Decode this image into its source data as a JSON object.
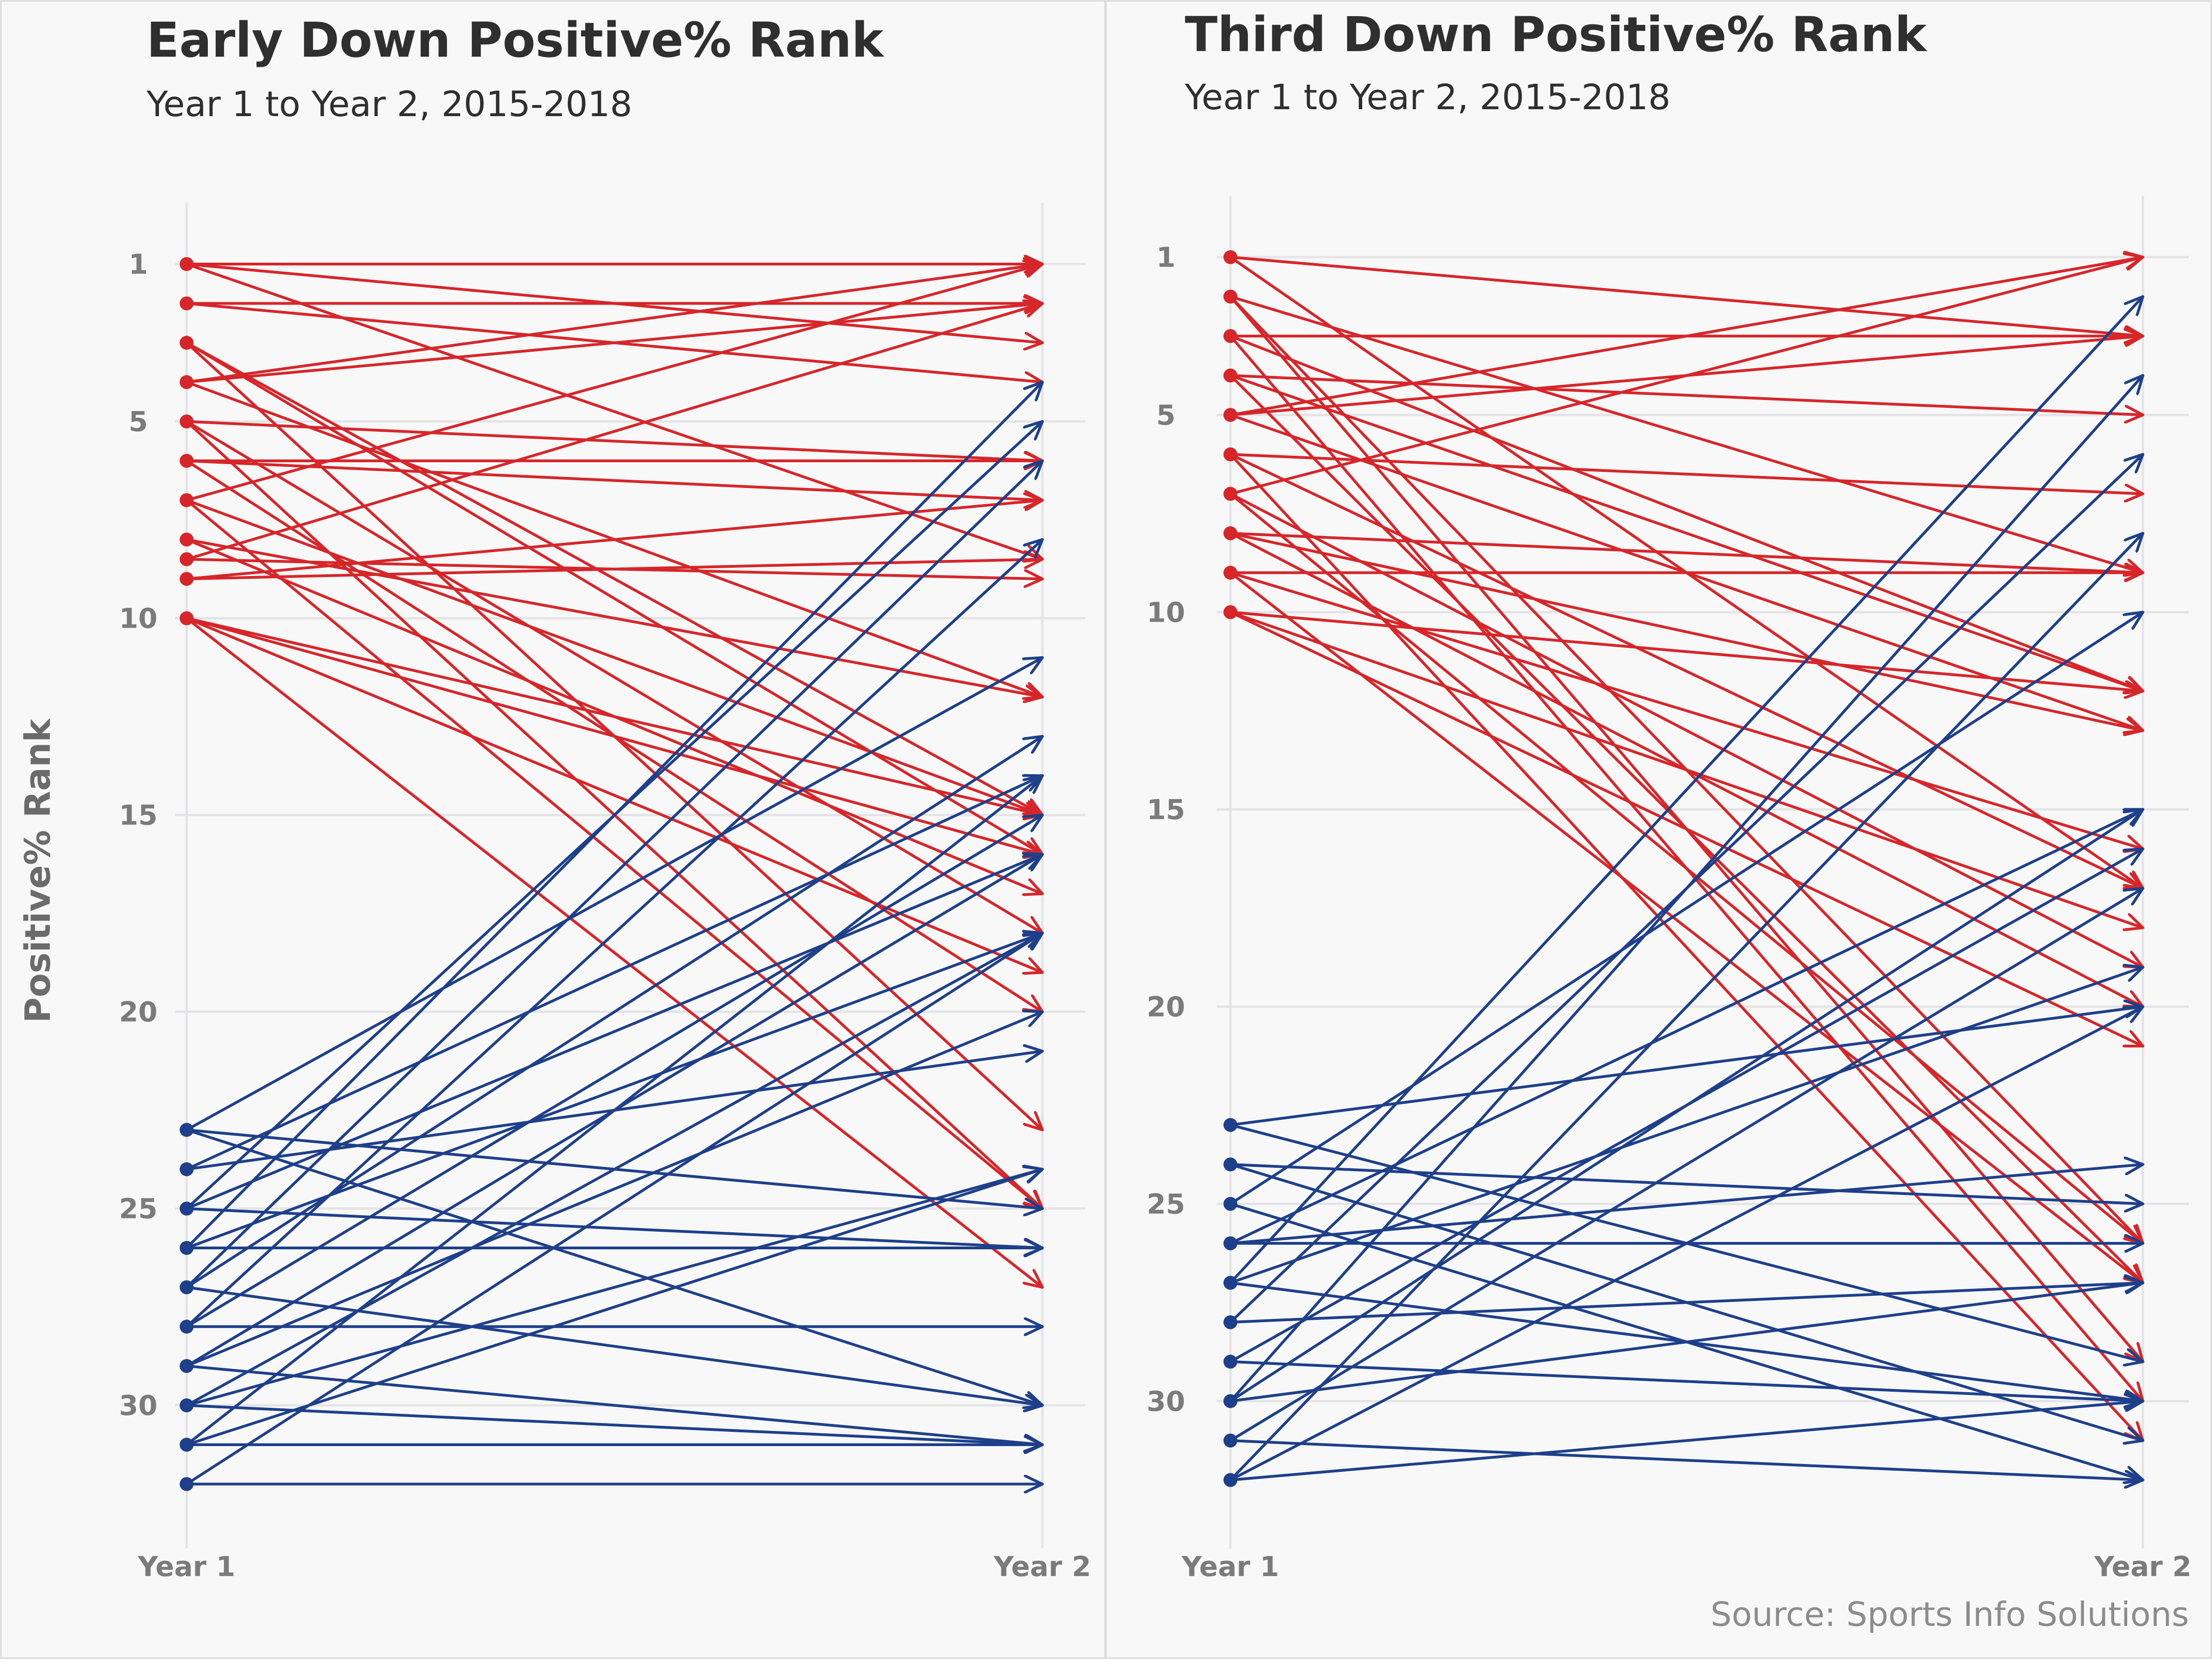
{
  "y_axis_label": "Positive% Rank",
  "source": "Source: Sports Info Solutions",
  "colors": {
    "improved": "#d7262a",
    "declined": "#1e3f8a",
    "grid": "#e4e4e7",
    "text": "#2f2f2f",
    "axis_text": "#7b7b7b"
  },
  "chart_data": [
    {
      "type": "line",
      "title": "Early Down Positive% Rank",
      "subtitle": "Year 1 to Year 2, 2015-2018",
      "ylabel": "Positive% Rank",
      "x_categories": [
        "Year 1",
        "Year 2"
      ],
      "ylim": [
        33,
        1
      ],
      "y_ticks": [
        1,
        5,
        10,
        15,
        20,
        25,
        30
      ],
      "series": [
        {
          "group": "top",
          "values": [
            1,
            1
          ]
        },
        {
          "group": "top",
          "values": [
            1,
            3
          ]
        },
        {
          "group": "top",
          "values": [
            1,
            8.5
          ]
        },
        {
          "group": "top",
          "values": [
            2,
            2
          ]
        },
        {
          "group": "top",
          "values": [
            2,
            4
          ]
        },
        {
          "group": "top",
          "values": [
            3,
            15
          ]
        },
        {
          "group": "top",
          "values": [
            3,
            16
          ]
        },
        {
          "group": "top",
          "values": [
            3,
            23
          ]
        },
        {
          "group": "top",
          "values": [
            4,
            1
          ]
        },
        {
          "group": "top",
          "values": [
            4,
            2
          ]
        },
        {
          "group": "top",
          "values": [
            4,
            12
          ]
        },
        {
          "group": "top",
          "values": [
            5,
            6
          ]
        },
        {
          "group": "top",
          "values": [
            5,
            18
          ]
        },
        {
          "group": "top",
          "values": [
            5,
            25
          ]
        },
        {
          "group": "top",
          "values": [
            6,
            6
          ]
        },
        {
          "group": "top",
          "values": [
            6,
            7
          ]
        },
        {
          "group": "top",
          "values": [
            6,
            20
          ]
        },
        {
          "group": "top",
          "values": [
            7,
            1
          ]
        },
        {
          "group": "top",
          "values": [
            7,
            15
          ]
        },
        {
          "group": "top",
          "values": [
            7,
            25
          ]
        },
        {
          "group": "top",
          "values": [
            8,
            12
          ]
        },
        {
          "group": "top",
          "values": [
            8,
            17
          ]
        },
        {
          "group": "top",
          "values": [
            8.5,
            2
          ]
        },
        {
          "group": "top",
          "values": [
            8.5,
            9
          ]
        },
        {
          "group": "top",
          "values": [
            9,
            7
          ]
        },
        {
          "group": "top",
          "values": [
            9,
            8.5
          ]
        },
        {
          "group": "top",
          "values": [
            10,
            15
          ]
        },
        {
          "group": "top",
          "values": [
            10,
            16
          ]
        },
        {
          "group": "top",
          "values": [
            10,
            19
          ]
        },
        {
          "group": "top",
          "values": [
            10,
            27
          ]
        },
        {
          "group": "bottom",
          "values": [
            23,
            11
          ]
        },
        {
          "group": "bottom",
          "values": [
            23,
            25
          ]
        },
        {
          "group": "bottom",
          "values": [
            23,
            30
          ]
        },
        {
          "group": "bottom",
          "values": [
            24,
            14
          ]
        },
        {
          "group": "bottom",
          "values": [
            24,
            21
          ]
        },
        {
          "group": "bottom",
          "values": [
            25,
            5
          ]
        },
        {
          "group": "bottom",
          "values": [
            25,
            16
          ]
        },
        {
          "group": "bottom",
          "values": [
            25,
            26
          ]
        },
        {
          "group": "bottom",
          "values": [
            26,
            4
          ]
        },
        {
          "group": "bottom",
          "values": [
            26,
            18
          ]
        },
        {
          "group": "bottom",
          "values": [
            26,
            26
          ]
        },
        {
          "group": "bottom",
          "values": [
            27,
            6
          ]
        },
        {
          "group": "bottom",
          "values": [
            27,
            13
          ]
        },
        {
          "group": "bottom",
          "values": [
            27,
            30
          ]
        },
        {
          "group": "bottom",
          "values": [
            28,
            8
          ]
        },
        {
          "group": "bottom",
          "values": [
            28,
            15
          ]
        },
        {
          "group": "bottom",
          "values": [
            28,
            28
          ]
        },
        {
          "group": "bottom",
          "values": [
            29,
            16
          ]
        },
        {
          "group": "bottom",
          "values": [
            29,
            20
          ]
        },
        {
          "group": "bottom",
          "values": [
            29,
            31
          ]
        },
        {
          "group": "bottom",
          "values": [
            30,
            18
          ]
        },
        {
          "group": "bottom",
          "values": [
            30,
            24
          ]
        },
        {
          "group": "bottom",
          "values": [
            30,
            31
          ]
        },
        {
          "group": "bottom",
          "values": [
            31,
            14
          ]
        },
        {
          "group": "bottom",
          "values": [
            31,
            24
          ]
        },
        {
          "group": "bottom",
          "values": [
            31,
            31
          ]
        },
        {
          "group": "bottom",
          "values": [
            32,
            18
          ]
        },
        {
          "group": "bottom",
          "values": [
            32,
            32
          ]
        }
      ]
    },
    {
      "type": "line",
      "title": "Third Down Positive% Rank",
      "subtitle": "Year 1 to Year 2, 2015-2018",
      "x_categories": [
        "Year 1",
        "Year 2"
      ],
      "ylim": [
        33,
        1
      ],
      "y_ticks": [
        1,
        5,
        10,
        15,
        20,
        25,
        30
      ],
      "series": [
        {
          "group": "top",
          "values": [
            1,
            3
          ]
        },
        {
          "group": "top",
          "values": [
            1,
            17
          ]
        },
        {
          "group": "top",
          "values": [
            2,
            9
          ]
        },
        {
          "group": "top",
          "values": [
            2,
            26
          ]
        },
        {
          "group": "top",
          "values": [
            2,
            29
          ]
        },
        {
          "group": "top",
          "values": [
            3,
            3
          ]
        },
        {
          "group": "top",
          "values": [
            3,
            12
          ]
        },
        {
          "group": "top",
          "values": [
            3,
            30
          ]
        },
        {
          "group": "top",
          "values": [
            4,
            5
          ]
        },
        {
          "group": "top",
          "values": [
            4,
            12
          ]
        },
        {
          "group": "top",
          "values": [
            4,
            27
          ]
        },
        {
          "group": "top",
          "values": [
            5,
            1
          ]
        },
        {
          "group": "top",
          "values": [
            5,
            3
          ]
        },
        {
          "group": "top",
          "values": [
            5,
            13
          ]
        },
        {
          "group": "top",
          "values": [
            6,
            7
          ]
        },
        {
          "group": "top",
          "values": [
            6,
            17
          ]
        },
        {
          "group": "top",
          "values": [
            6,
            31
          ]
        },
        {
          "group": "top",
          "values": [
            7,
            1
          ]
        },
        {
          "group": "top",
          "values": [
            7,
            19
          ]
        },
        {
          "group": "top",
          "values": [
            7,
            26
          ]
        },
        {
          "group": "top",
          "values": [
            8,
            9
          ]
        },
        {
          "group": "top",
          "values": [
            8,
            13
          ]
        },
        {
          "group": "top",
          "values": [
            8,
            20
          ]
        },
        {
          "group": "top",
          "values": [
            9,
            9
          ]
        },
        {
          "group": "top",
          "values": [
            9,
            16
          ]
        },
        {
          "group": "top",
          "values": [
            9,
            27
          ]
        },
        {
          "group": "top",
          "values": [
            10,
            12
          ]
        },
        {
          "group": "top",
          "values": [
            10,
            18
          ]
        },
        {
          "group": "top",
          "values": [
            10,
            21
          ]
        },
        {
          "group": "bottom",
          "values": [
            23,
            20
          ]
        },
        {
          "group": "bottom",
          "values": [
            23,
            29
          ]
        },
        {
          "group": "bottom",
          "values": [
            24,
            25
          ]
        },
        {
          "group": "bottom",
          "values": [
            24,
            31
          ]
        },
        {
          "group": "bottom",
          "values": [
            25,
            10
          ]
        },
        {
          "group": "bottom",
          "values": [
            25,
            32
          ]
        },
        {
          "group": "bottom",
          "values": [
            26,
            15
          ]
        },
        {
          "group": "bottom",
          "values": [
            26,
            24
          ]
        },
        {
          "group": "bottom",
          "values": [
            26,
            26
          ]
        },
        {
          "group": "bottom",
          "values": [
            27,
            2
          ]
        },
        {
          "group": "bottom",
          "values": [
            27,
            19
          ]
        },
        {
          "group": "bottom",
          "values": [
            27,
            30
          ]
        },
        {
          "group": "bottom",
          "values": [
            28,
            6
          ]
        },
        {
          "group": "bottom",
          "values": [
            28,
            27
          ]
        },
        {
          "group": "bottom",
          "values": [
            29,
            16
          ]
        },
        {
          "group": "bottom",
          "values": [
            29,
            30
          ]
        },
        {
          "group": "bottom",
          "values": [
            30,
            4
          ]
        },
        {
          "group": "bottom",
          "values": [
            30,
            15
          ]
        },
        {
          "group": "bottom",
          "values": [
            30,
            27
          ]
        },
        {
          "group": "bottom",
          "values": [
            31,
            17
          ]
        },
        {
          "group": "bottom",
          "values": [
            31,
            32
          ]
        },
        {
          "group": "bottom",
          "values": [
            32,
            8
          ]
        },
        {
          "group": "bottom",
          "values": [
            32,
            20
          ]
        },
        {
          "group": "bottom",
          "values": [
            32,
            30
          ]
        }
      ]
    }
  ]
}
